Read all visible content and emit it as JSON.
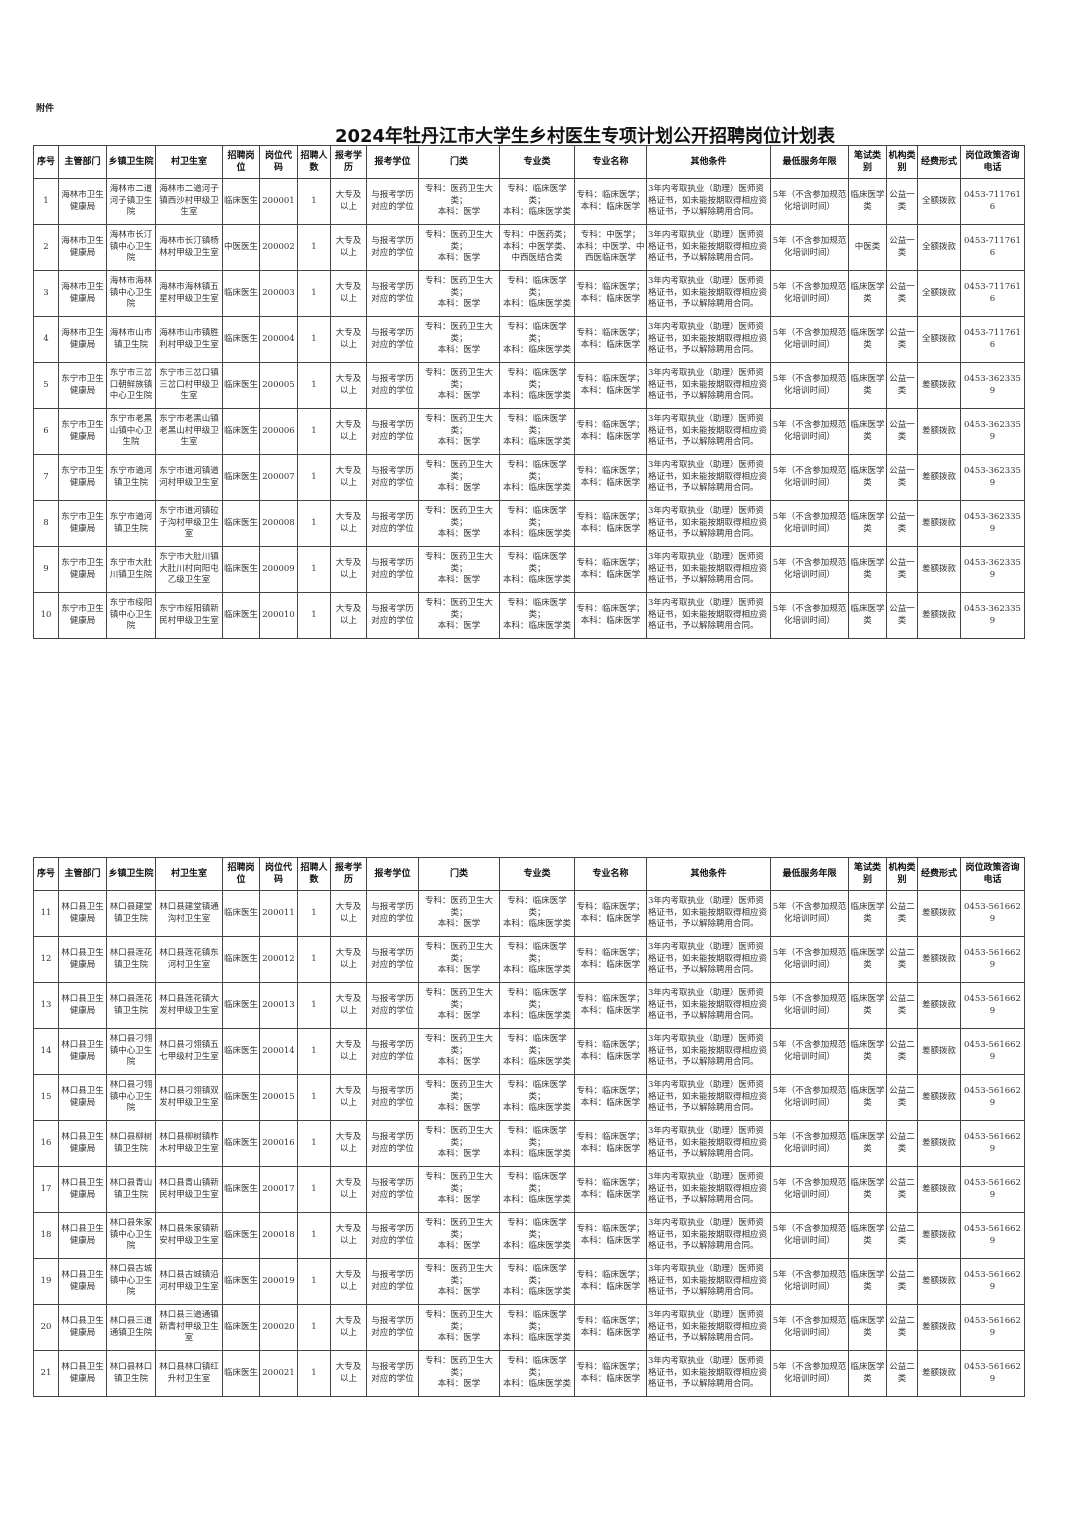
{
  "attachment_label": "附件",
  "title": "2024年牡丹江市大学生乡村医生专项计划公开招聘岗位计划表",
  "columns": [
    "序号",
    "主管部门",
    "乡镇卫生院",
    "村卫生室",
    "招聘岗位",
    "岗位代码",
    "招聘人数",
    "报考学历",
    "报考学位",
    "门类",
    "专业类",
    "专业名称",
    "其他条件",
    "最低服务年限",
    "笔试类别",
    "机构类别",
    "经费形式",
    "岗位政策咨询电话"
  ],
  "tables": [
    {
      "rows": [
        [
          "1",
          "海林市卫生健康局",
          "海林市二道河子镇卫生院",
          "海林市二道河子镇西沙村甲级卫生室",
          "临床医生",
          "200001",
          "1",
          "大专及以上",
          "与报考学历对应的学位",
          "专科：医药卫生大类；\n本科：医学",
          "专科：临床医学类；\n本科：临床医学类",
          "专科：临床医学；\n本科：临床医学",
          "3年内考取执业（助理）医师资格证书，如未能按期取得相应资格证书，予以解除聘用合同。",
          "5年（不含参加规范化培训时间）",
          "临床医学类",
          "公益一类",
          "全额拨款",
          "0453-7117616"
        ],
        [
          "2",
          "海林市卫生健康局",
          "海林市长汀镇中心卫生院",
          "海林市长汀镇杨林村甲级卫生室",
          "中医医生",
          "200002",
          "1",
          "大专及以上",
          "与报考学历对应的学位",
          "专科：医药卫生大类；\n本科：医学",
          "专科：中医药类；\n本科：中医学类、中西医结合类",
          "专科：中医学；\n本科：中医学、中西医临床医学",
          "3年内考取执业（助理）医师资格证书，如未能按期取得相应资格证书，予以解除聘用合同。",
          "5年（不含参加规范化培训时间）",
          "中医类",
          "公益一类",
          "全额拨款",
          "0453-7117616"
        ],
        [
          "3",
          "海林市卫生健康局",
          "海林市海林镇中心卫生院",
          "海林市海林镇五星村甲级卫生室",
          "临床医生",
          "200003",
          "1",
          "大专及以上",
          "与报考学历对应的学位",
          "专科：医药卫生大类；\n本科：医学",
          "专科：临床医学类；\n本科：临床医学类",
          "专科：临床医学；\n本科：临床医学",
          "3年内考取执业（助理）医师资格证书，如未能按期取得相应资格证书，予以解除聘用合同。",
          "5年（不含参加规范化培训时间）",
          "临床医学类",
          "公益一类",
          "全额拨款",
          "0453-7117616"
        ],
        [
          "4",
          "海林市卫生健康局",
          "海林市山市镇卫生院",
          "海林市山市镇胜利村甲级卫生室",
          "临床医生",
          "200004",
          "1",
          "大专及以上",
          "与报考学历对应的学位",
          "专科：医药卫生大类；\n本科：医学",
          "专科：临床医学类；\n本科：临床医学类",
          "专科：临床医学；\n本科：临床医学",
          "3年内考取执业（助理）医师资格证书，如未能按期取得相应资格证书，予以解除聘用合同。",
          "5年（不含参加规范化培训时间）",
          "临床医学类",
          "公益一类",
          "全额拨款",
          "0453-7117616"
        ],
        [
          "5",
          "东宁市卫生健康局",
          "东宁市三岔口朝鲜族镇中心卫生院",
          "东宁市三岔口镇三岔口村甲级卫生室",
          "临床医生",
          "200005",
          "1",
          "大专及以上",
          "与报考学历对应的学位",
          "专科：医药卫生大类；\n本科：医学",
          "专科：临床医学类；\n本科：临床医学类",
          "专科：临床医学；\n本科：临床医学",
          "3年内考取执业（助理）医师资格证书，如未能按期取得相应资格证书，予以解除聘用合同。",
          "5年（不含参加规范化培训时间）",
          "临床医学类",
          "公益一类",
          "差额拨款",
          "0453-3623359"
        ],
        [
          "6",
          "东宁市卫生健康局",
          "东宁市老黑山镇中心卫生院",
          "东宁市老黑山镇老黑山村甲级卫生室",
          "临床医生",
          "200006",
          "1",
          "大专及以上",
          "与报考学历对应的学位",
          "专科：医药卫生大类；\n本科：医学",
          "专科：临床医学类；\n本科：临床医学类",
          "专科：临床医学；\n本科：临床医学",
          "3年内考取执业（助理）医师资格证书，如未能按期取得相应资格证书，予以解除聘用合同。",
          "5年（不含参加规范化培训时间）",
          "临床医学类",
          "公益一类",
          "差额拨款",
          "0453-3623359"
        ],
        [
          "7",
          "东宁市卫生健康局",
          "东宁市道河镇卫生院",
          "东宁市道河镇道河村甲级卫生室",
          "临床医生",
          "200007",
          "1",
          "大专及以上",
          "与报考学历对应的学位",
          "专科：医药卫生大类；\n本科：医学",
          "专科：临床医学类；\n本科：临床医学类",
          "专科：临床医学；\n本科：临床医学",
          "3年内考取执业（助理）医师资格证书，如未能按期取得相应资格证书，予以解除聘用合同。",
          "5年（不含参加规范化培训时间）",
          "临床医学类",
          "公益一类",
          "差额拨款",
          "0453-3623359"
        ],
        [
          "8",
          "东宁市卫生健康局",
          "东宁市道河镇卫生院",
          "东宁市道河镇砬子沟村甲级卫生室",
          "临床医生",
          "200008",
          "1",
          "大专及以上",
          "与报考学历对应的学位",
          "专科：医药卫生大类；\n本科：医学",
          "专科：临床医学类；\n本科：临床医学类",
          "专科：临床医学；\n本科：临床医学",
          "3年内考取执业（助理）医师资格证书，如未能按期取得相应资格证书，予以解除聘用合同。",
          "5年（不含参加规范化培训时间）",
          "临床医学类",
          "公益一类",
          "差额拨款",
          "0453-3623359"
        ],
        [
          "9",
          "东宁市卫生健康局",
          "东宁市大肚川镇卫生院",
          "东宁市大肚川镇大肚川村向阳屯乙级卫生室",
          "临床医生",
          "200009",
          "1",
          "大专及以上",
          "与报考学历对应的学位",
          "专科：医药卫生大类；\n本科：医学",
          "专科：临床医学类；\n本科：临床医学类",
          "专科：临床医学；\n本科：临床医学",
          "3年内考取执业（助理）医师资格证书，如未能按期取得相应资格证书，予以解除聘用合同。",
          "5年（不含参加规范化培训时间）",
          "临床医学类",
          "公益一类",
          "差额拨款",
          "0453-3623359"
        ],
        [
          "10",
          "东宁市卫生健康局",
          "东宁市绥阳镇中心卫生院",
          "东宁市绥阳镇新民村甲级卫生室",
          "临床医生",
          "200010",
          "1",
          "大专及以上",
          "与报考学历对应的学位",
          "专科：医药卫生大类；\n本科：医学",
          "专科：临床医学类；\n本科：临床医学类",
          "专科：临床医学；\n本科：临床医学",
          "3年内考取执业（助理）医师资格证书，如未能按期取得相应资格证书，予以解除聘用合同。",
          "5年（不含参加规范化培训时间）",
          "临床医学类",
          "公益一类",
          "差额拨款",
          "0453-3623359"
        ]
      ]
    },
    {
      "rows": [
        [
          "11",
          "林口县卫生健康局",
          "林口县建堂镇卫生院",
          "林口县建堂镇通沟村卫生室",
          "临床医生",
          "200011",
          "1",
          "大专及以上",
          "与报考学历对应的学位",
          "专科：医药卫生大类；\n本科：医学",
          "专科：临床医学类；\n本科：临床医学类",
          "专科：临床医学；\n本科：临床医学",
          "3年内考取执业（助理）医师资格证书，如未能按期取得相应资格证书，予以解除聘用合同。",
          "5年（不含参加规范化培训时间）",
          "临床医学类",
          "公益二类",
          "差额拨款",
          "0453-5616629"
        ],
        [
          "12",
          "林口县卫生健康局",
          "林口县莲花镇卫生院",
          "林口县莲花镇东河村卫生室",
          "临床医生",
          "200012",
          "1",
          "大专及以上",
          "与报考学历对应的学位",
          "专科：医药卫生大类；\n本科：医学",
          "专科：临床医学类；\n本科：临床医学类",
          "专科：临床医学；\n本科：临床医学",
          "3年内考取执业（助理）医师资格证书，如未能按期取得相应资格证书，予以解除聘用合同。",
          "5年（不含参加规范化培训时间）",
          "临床医学类",
          "公益二类",
          "差额拨款",
          "0453-5616629"
        ],
        [
          "13",
          "林口县卫生健康局",
          "林口县莲花镇卫生院",
          "林口县莲花镇大发村甲级卫生室",
          "临床医生",
          "200013",
          "1",
          "大专及以上",
          "与报考学历对应的学位",
          "专科：医药卫生大类；\n本科：医学",
          "专科：临床医学类；\n本科：临床医学类",
          "专科：临床医学；\n本科：临床医学",
          "3年内考取执业（助理）医师资格证书，如未能按期取得相应资格证书，予以解除聘用合同。",
          "5年（不含参加规范化培训时间）",
          "临床医学类",
          "公益二类",
          "差额拨款",
          "0453-5616629"
        ],
        [
          "14",
          "林口县卫生健康局",
          "林口县刁翎镇中心卫生院",
          "林口县刁翎镇五七甲级村卫生室",
          "临床医生",
          "200014",
          "1",
          "大专及以上",
          "与报考学历对应的学位",
          "专科：医药卫生大类；\n本科：医学",
          "专科：临床医学类；\n本科：临床医学类",
          "专科：临床医学；\n本科：临床医学",
          "3年内考取执业（助理）医师资格证书，如未能按期取得相应资格证书，予以解除聘用合同。",
          "5年（不含参加规范化培训时间）",
          "临床医学类",
          "公益二类",
          "差额拨款",
          "0453-5616629"
        ],
        [
          "15",
          "林口县卫生健康局",
          "林口县刁翎镇中心卫生院",
          "林口县刁翎镇双发村甲级卫生室",
          "临床医生",
          "200015",
          "1",
          "大专及以上",
          "与报考学历对应的学位",
          "专科：医药卫生大类；\n本科：医学",
          "专科：临床医学类；\n本科：临床医学类",
          "专科：临床医学；\n本科：临床医学",
          "3年内考取执业（助理）医师资格证书，如未能按期取得相应资格证书，予以解除聘用合同。",
          "5年（不含参加规范化培训时间）",
          "临床医学类",
          "公益二类",
          "差额拨款",
          "0453-5616629"
        ],
        [
          "16",
          "林口县卫生健康局",
          "林口县柳树镇卫生院",
          "林口县柳树镇柞木村甲级卫生室",
          "临床医生",
          "200016",
          "1",
          "大专及以上",
          "与报考学历对应的学位",
          "专科：医药卫生大类；\n本科：医学",
          "专科：临床医学类；\n本科：临床医学类",
          "专科：临床医学；\n本科：临床医学",
          "3年内考取执业（助理）医师资格证书，如未能按期取得相应资格证书，予以解除聘用合同。",
          "5年（不含参加规范化培训时间）",
          "临床医学类",
          "公益二类",
          "差额拨款",
          "0453-5616629"
        ],
        [
          "17",
          "林口县卫生健康局",
          "林口县青山镇卫生院",
          "林口县青山镇新民村甲级卫生室",
          "临床医生",
          "200017",
          "1",
          "大专及以上",
          "与报考学历对应的学位",
          "专科：医药卫生大类；\n本科：医学",
          "专科：临床医学类；\n本科：临床医学类",
          "专科：临床医学；\n本科：临床医学",
          "3年内考取执业（助理）医师资格证书，如未能按期取得相应资格证书，予以解除聘用合同。",
          "5年（不含参加规范化培训时间）",
          "临床医学类",
          "公益二类",
          "差额拨款",
          "0453-5616629"
        ],
        [
          "18",
          "林口县卫生健康局",
          "林口县朱家镇中心卫生院",
          "林口县朱家镇新安村甲级卫生室",
          "临床医生",
          "200018",
          "1",
          "大专及以上",
          "与报考学历对应的学位",
          "专科：医药卫生大类；\n本科：医学",
          "专科：临床医学类；\n本科：临床医学类",
          "专科：临床医学；\n本科：临床医学",
          "3年内考取执业（助理）医师资格证书，如未能按期取得相应资格证书，予以解除聘用合同。",
          "5年（不含参加规范化培训时间）",
          "临床医学类",
          "公益二类",
          "差额拨款",
          "0453-5616629"
        ],
        [
          "19",
          "林口县卫生健康局",
          "林口县古城镇中心卫生院",
          "林口县古城镇沿河村甲级卫生室",
          "临床医生",
          "200019",
          "1",
          "大专及以上",
          "与报考学历对应的学位",
          "专科：医药卫生大类；\n本科：医学",
          "专科：临床医学类；\n本科：临床医学类",
          "专科：临床医学；\n本科：临床医学",
          "3年内考取执业（助理）医师资格证书，如未能按期取得相应资格证书，予以解除聘用合同。",
          "5年（不含参加规范化培训时间）",
          "临床医学类",
          "公益二类",
          "差额拨款",
          "0453-5616629"
        ],
        [
          "20",
          "林口县卫生健康局",
          "林口县三道通镇卫生院",
          "林口县三道通镇新青村甲级卫生室",
          "临床医生",
          "200020",
          "1",
          "大专及以上",
          "与报考学历对应的学位",
          "专科：医药卫生大类；\n本科：医学",
          "专科：临床医学类；\n本科：临床医学类",
          "专科：临床医学；\n本科：临床医学",
          "3年内考取执业（助理）医师资格证书，如未能按期取得相应资格证书，予以解除聘用合同。",
          "5年（不含参加规范化培训时间）",
          "临床医学类",
          "公益二类",
          "差额拨款",
          "0453-5616629"
        ],
        [
          "21",
          "林口县卫生健康局",
          "林口县林口镇卫生院",
          "林口县林口镇红升村卫生室",
          "临床医生",
          "200021",
          "1",
          "大专及以上",
          "与报考学历对应的学位",
          "专科：医药卫生大类；\n本科：医学",
          "专科：临床医学类；\n本科：临床医学类",
          "专科：临床医学；\n本科：临床医学",
          "3年内考取执业（助理）医师资格证书，如未能按期取得相应资格证书，予以解除聘用合同。",
          "5年（不含参加规范化培训时间）",
          "临床医学类",
          "公益二类",
          "差额拨款",
          "0453-5616629"
        ]
      ]
    }
  ]
}
